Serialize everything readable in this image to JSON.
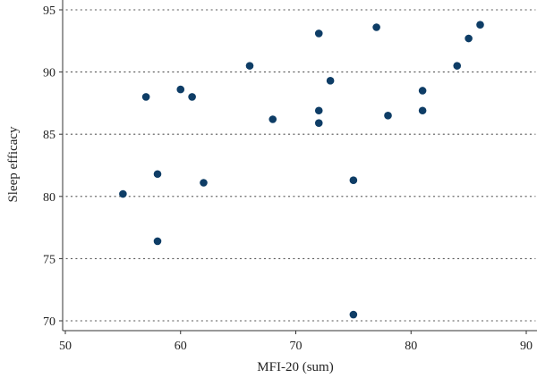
{
  "chart_data": {
    "type": "scatter",
    "title": "",
    "xlabel": "MFI-20 (sum)",
    "ylabel": "Sleep efficacy",
    "xlim": [
      50,
      90
    ],
    "ylim": [
      70,
      95
    ],
    "xticks": [
      50,
      60,
      70,
      80,
      90
    ],
    "yticks": [
      70,
      75,
      80,
      85,
      90,
      95
    ],
    "grid": "horizontal-dotted",
    "marker_color": "#0e3d66",
    "points": [
      {
        "x": 55,
        "y": 80.2
      },
      {
        "x": 57,
        "y": 88.0
      },
      {
        "x": 58,
        "y": 81.8
      },
      {
        "x": 58,
        "y": 76.4
      },
      {
        "x": 60,
        "y": 88.6
      },
      {
        "x": 61,
        "y": 88.0
      },
      {
        "x": 62,
        "y": 81.1
      },
      {
        "x": 66,
        "y": 90.5
      },
      {
        "x": 68,
        "y": 86.2
      },
      {
        "x": 72,
        "y": 93.1
      },
      {
        "x": 72,
        "y": 86.9
      },
      {
        "x": 72,
        "y": 85.9
      },
      {
        "x": 73,
        "y": 89.3
      },
      {
        "x": 75,
        "y": 81.3
      },
      {
        "x": 75,
        "y": 70.5
      },
      {
        "x": 77,
        "y": 93.6
      },
      {
        "x": 78,
        "y": 86.5
      },
      {
        "x": 81,
        "y": 88.5
      },
      {
        "x": 81,
        "y": 86.9
      },
      {
        "x": 84,
        "y": 90.5
      },
      {
        "x": 85,
        "y": 92.7
      },
      {
        "x": 86,
        "y": 93.8
      }
    ]
  }
}
